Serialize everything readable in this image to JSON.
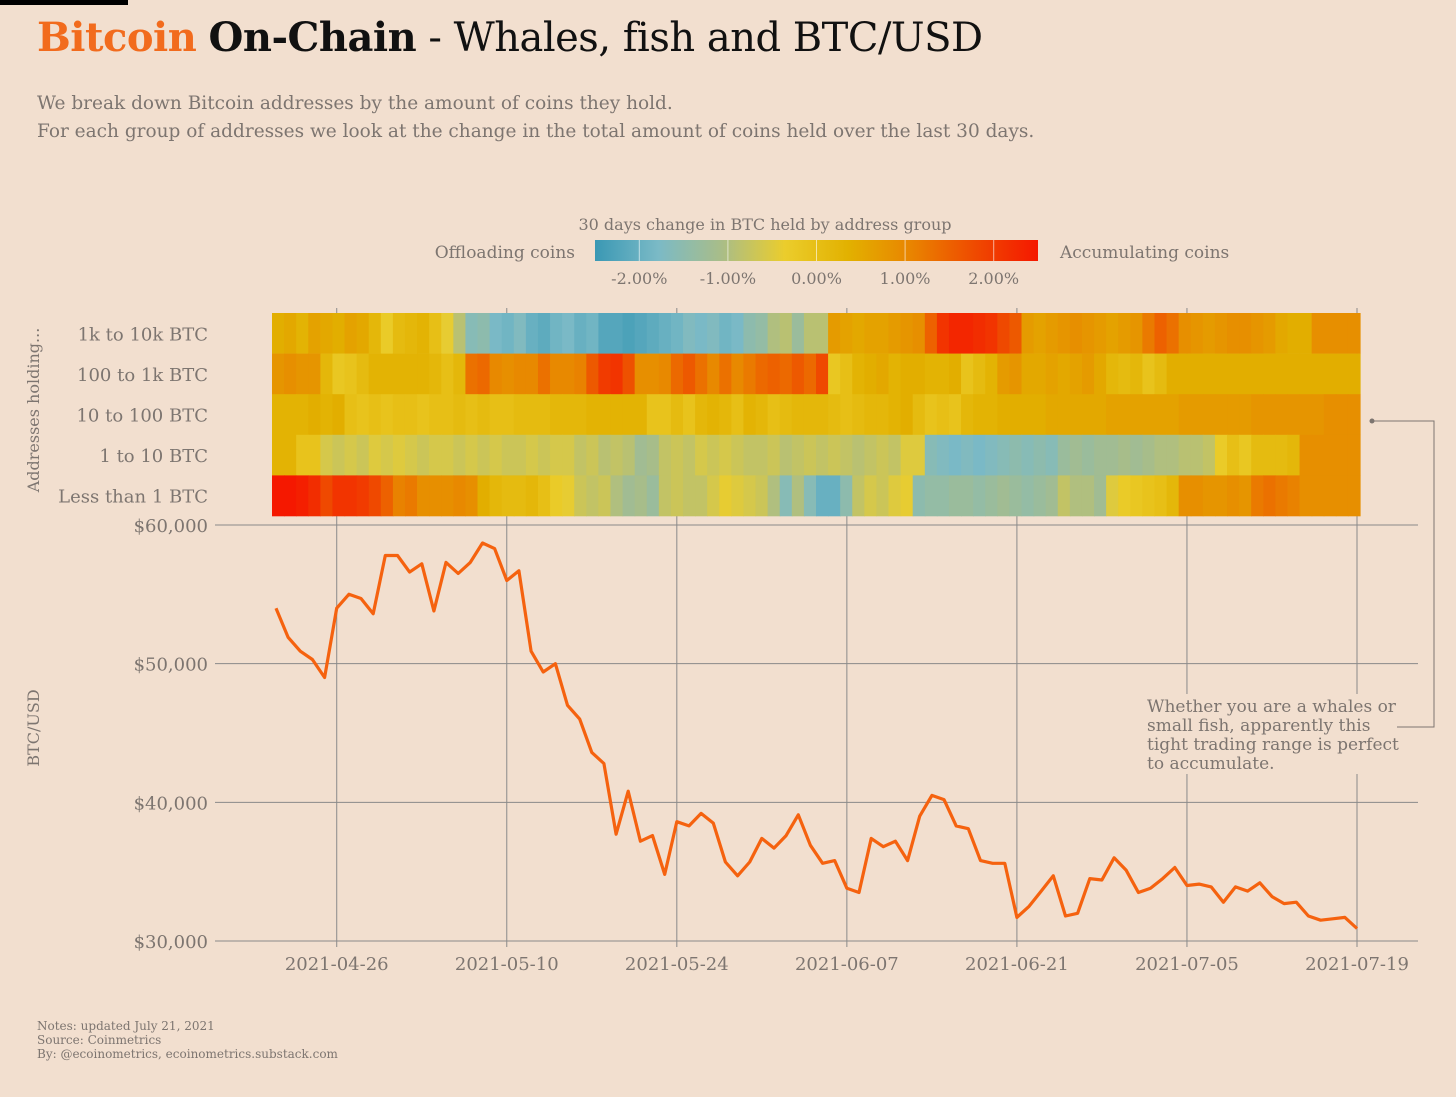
{
  "title": {
    "brand": "Bitcoin",
    "bold": "On-Chain",
    "rest": " - Whales, fish and BTC/USD"
  },
  "subtitle": [
    "We break down Bitcoin addresses by the amount of coins they hold.",
    "For each group of addresses we look at the change in the total amount of coins held over the last 30 days."
  ],
  "legend": {
    "title": "30 days change in BTC held by address group",
    "left_label": "Offloading coins",
    "right_label": "Accumulating coins",
    "ticks": [
      "-2.00%",
      "-1.00%",
      "0.00%",
      "1.00%",
      "2.00%"
    ],
    "tick_values": [
      -2,
      -1,
      0,
      1,
      2
    ],
    "range": [
      -2.5,
      2.5
    ],
    "colors": [
      "#3a98b4",
      "#7bbac6",
      "#a9bd88",
      "#ebcd2c",
      "#e2b100",
      "#e98400",
      "#ef4a00",
      "#f51800"
    ]
  },
  "annotation": [
    "Whether you are a whales or",
    "small fish, apparently this",
    "tight trading range is perfect",
    "to accumulate."
  ],
  "footer": [
    "Notes: updated July 21, 2021",
    "Source: Coinmetrics",
    "By: @ecoinometrics, ecoinometrics.substack.com"
  ],
  "colors": {
    "brand": "#f26b1d",
    "line": "#f5620f",
    "background": "#f2dfcf",
    "grid": "#8a8a8a"
  },
  "chart_data": [
    {
      "type": "heatmap",
      "ylabel": "Addresses holding...",
      "unit": "% change over 30 days",
      "x_start": "2021-04-21",
      "x_end": "2021-07-19",
      "rows": [
        {
          "label": "1k to 10k BTC",
          "values": [
            0.4,
            0.5,
            0.3,
            0.6,
            0.5,
            0.4,
            0.6,
            0.5,
            0.2,
            -0.3,
            0.1,
            0.2,
            0.3,
            0.0,
            -0.4,
            -0.9,
            -1.6,
            -1.5,
            -1.8,
            -1.9,
            -1.7,
            -2.0,
            -2.1,
            -1.9,
            -1.8,
            -2.0,
            -1.9,
            -2.2,
            -2.2,
            -2.3,
            -2.2,
            -2.1,
            -2.0,
            -1.9,
            -1.7,
            -1.8,
            -1.7,
            -1.9,
            -1.8,
            -1.5,
            -1.4,
            -1.0,
            -0.9,
            -1.3,
            -0.9,
            -0.9,
            0.7,
            0.6,
            0.5,
            0.6,
            0.6,
            0.7,
            0.8,
            0.9,
            1.5,
            2.1,
            2.3,
            2.3,
            2.2,
            2.1,
            1.8,
            1.6,
            0.7,
            0.6,
            0.7,
            0.8,
            0.9,
            0.8,
            0.7,
            0.6,
            0.7,
            0.8,
            1.2,
            1.5,
            1.3,
            0.9,
            0.8,
            0.7,
            0.8,
            0.9,
            0.9,
            0.8,
            0.7,
            0.5,
            0.4,
            0.4,
            0.9,
            0.9,
            0.9,
            0.9
          ]
        },
        {
          "label": "100 to 1k BTC",
          "values": [
            0.8,
            0.9,
            0.8,
            0.8,
            0.2,
            -0.2,
            -0.1,
            0.1,
            0.3,
            0.3,
            0.3,
            0.3,
            0.3,
            0.2,
            0.0,
            0.2,
            1.3,
            1.4,
            1.0,
            0.9,
            1.0,
            1.0,
            1.3,
            1.0,
            1.0,
            1.1,
            1.6,
            2.0,
            2.1,
            1.7,
            0.9,
            0.9,
            1.0,
            1.4,
            1.6,
            1.3,
            1.0,
            1.3,
            1.0,
            1.2,
            1.4,
            1.5,
            1.4,
            1.6,
            1.4,
            1.8,
            -0.2,
            0.0,
            0.3,
            0.4,
            0.5,
            0.3,
            0.4,
            0.4,
            0.3,
            0.3,
            0.4,
            -0.1,
            0.1,
            0.3,
            0.7,
            0.8,
            0.5,
            0.5,
            0.6,
            0.5,
            0.6,
            0.7,
            0.5,
            0.2,
            0.1,
            0.2,
            -0.1,
            0.1,
            0.4,
            0.4,
            0.4,
            0.4,
            0.4,
            0.4,
            0.4,
            0.4,
            0.4,
            0.4,
            0.4,
            0.4,
            0.4,
            0.4,
            0.4,
            0.4
          ]
        },
        {
          "label": "10 to 100 BTC",
          "values": [
            0.3,
            0.3,
            0.3,
            0.4,
            0.3,
            0.4,
            0.0,
            -0.1,
            0.0,
            -0.1,
            0.0,
            0.0,
            -0.1,
            0.0,
            0.0,
            0.1,
            0.0,
            0.1,
            0.0,
            0.0,
            0.1,
            0.1,
            0.1,
            0.2,
            0.2,
            0.2,
            0.3,
            0.3,
            0.3,
            0.3,
            0.3,
            -0.1,
            -0.1,
            0.1,
            -0.1,
            0.2,
            0.3,
            0.2,
            0.0,
            0.3,
            0.2,
            0.0,
            0.1,
            0.2,
            0.2,
            0.2,
            0.1,
            0.0,
            0.1,
            0.2,
            0.2,
            0.3,
            0.4,
            0.1,
            -0.1,
            0.0,
            -0.1,
            0.2,
            0.3,
            0.3,
            0.4,
            0.4,
            0.4,
            0.4,
            0.5,
            0.5,
            0.5,
            0.5,
            0.5,
            0.6,
            0.6,
            0.6,
            0.6,
            0.6,
            0.6,
            0.7,
            0.7,
            0.7,
            0.7,
            0.7,
            0.7,
            0.8,
            0.8,
            0.8,
            0.8,
            0.8,
            0.8,
            0.9,
            0.9,
            0.9
          ]
        },
        {
          "label": "1 to 10 BTC",
          "values": [
            0.3,
            0.3,
            -0.1,
            -0.1,
            -0.6,
            -0.7,
            -0.6,
            -0.7,
            -0.5,
            -0.6,
            -0.5,
            -0.6,
            -0.7,
            -0.6,
            -0.6,
            -0.7,
            -0.6,
            -0.7,
            -0.6,
            -0.7,
            -0.7,
            -0.6,
            -0.7,
            -0.6,
            -0.6,
            -0.8,
            -0.7,
            -0.9,
            -0.8,
            -0.9,
            -1.2,
            -1.1,
            -0.8,
            -0.7,
            -0.8,
            -0.6,
            -0.7,
            -0.6,
            -0.7,
            -0.8,
            -0.8,
            -0.7,
            -0.9,
            -0.8,
            -0.7,
            -0.8,
            -0.7,
            -0.8,
            -0.9,
            -0.8,
            -0.7,
            -0.8,
            -0.5,
            -0.5,
            -1.6,
            -1.7,
            -1.8,
            -1.7,
            -1.8,
            -1.7,
            -1.6,
            -1.5,
            -1.6,
            -1.5,
            -1.6,
            -1.3,
            -1.2,
            -1.3,
            -1.2,
            -1.2,
            -1.1,
            -1.2,
            -1.1,
            -1.0,
            -1.0,
            -0.9,
            -0.9,
            -0.8,
            -0.3,
            0.0,
            -0.2,
            0.1,
            0.1,
            0.1,
            0.2,
            0.9,
            0.9,
            0.9,
            0.9,
            0.9
          ]
        },
        {
          "label": "Less than 1 BTC",
          "values": [
            2.5,
            2.5,
            2.4,
            2.2,
            1.8,
            2.1,
            2.1,
            2.0,
            1.8,
            1.5,
            1.1,
            1.2,
            0.9,
            0.9,
            0.9,
            1.0,
            0.9,
            0.4,
            0.2,
            0.1,
            0.1,
            0.2,
            0.0,
            -0.3,
            -0.4,
            -0.7,
            -0.8,
            -0.7,
            -1.0,
            -1.2,
            -1.1,
            -1.3,
            -0.8,
            -0.7,
            -0.8,
            -0.8,
            -0.6,
            -0.4,
            -0.5,
            -0.6,
            -0.7,
            -1.0,
            -1.6,
            -1.0,
            -1.6,
            -2.0,
            -2.0,
            -1.5,
            -0.8,
            -0.6,
            -0.7,
            -0.5,
            -0.4,
            -1.5,
            -1.4,
            -1.4,
            -1.3,
            -1.3,
            -1.4,
            -1.3,
            -1.2,
            -1.3,
            -1.4,
            -1.3,
            -1.2,
            -0.8,
            -1.0,
            -1.0,
            -1.2,
            -0.5,
            -0.3,
            -0.2,
            -0.1,
            0.0,
            0.2,
            0.9,
            0.9,
            0.8,
            0.8,
            0.9,
            0.8,
            1.2,
            1.3,
            1.2,
            1.1,
            0.9,
            0.9,
            0.9,
            0.9,
            0.9
          ]
        }
      ]
    },
    {
      "type": "line",
      "ylabel": "BTC/USD",
      "xlabel": "",
      "x_start": "2021-04-21",
      "ylim": [
        30000,
        60000
      ],
      "yticks": [
        30000,
        40000,
        50000,
        60000
      ],
      "ytick_labels": [
        "$30,000",
        "$40,000",
        "$50,000",
        "$60,000"
      ],
      "xtick_labels": [
        "2021-04-26",
        "2021-05-10",
        "2021-05-24",
        "2021-06-07",
        "2021-06-21",
        "2021-07-05",
        "2021-07-19"
      ],
      "xtick_day_offsets": [
        5,
        19,
        33,
        47,
        61,
        75,
        89
      ],
      "grid": true,
      "values": [
        54000,
        51900,
        50900,
        50300,
        49000,
        54000,
        55000,
        54700,
        53600,
        57800,
        57800,
        56600,
        57200,
        53800,
        57300,
        56500,
        57300,
        58700,
        58300,
        56000,
        56700,
        50900,
        49400,
        50000,
        47000,
        46000,
        43600,
        42800,
        37700,
        40800,
        37200,
        37600,
        34800,
        38600,
        38300,
        39200,
        38500,
        35700,
        34700,
        35700,
        37400,
        36700,
        37600,
        39100,
        36900,
        35600,
        35800,
        33800,
        33500,
        37400,
        36800,
        37200,
        35800,
        39000,
        40500,
        40200,
        38300,
        38100,
        35800,
        35600,
        35600,
        31700,
        32500,
        33600,
        34700,
        31800,
        32000,
        34500,
        34400,
        36000,
        35100,
        33500,
        33800,
        34500,
        35300,
        34000,
        34100,
        33900,
        32800,
        33900,
        33600,
        34200,
        33200,
        32700,
        32800,
        31800,
        31500,
        31600,
        31700,
        30900
      ]
    }
  ]
}
